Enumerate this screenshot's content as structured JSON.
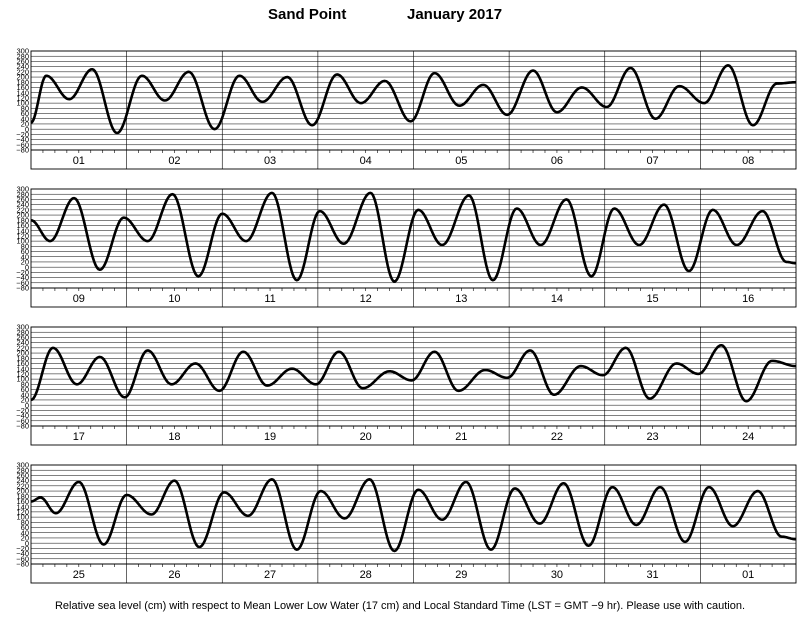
{
  "title": {
    "station": "Sand Point",
    "period": "January   2017"
  },
  "footer": "Relative sea level (cm) with respect to Mean Lower Low Water (17 cm) and Local Standard Time (LST = GMT −9 hr). Please use with caution.",
  "chart_data": {
    "type": "line",
    "ylabel": "",
    "ylim": [
      -80,
      300
    ],
    "yticks": [
      300,
      280,
      260,
      240,
      220,
      200,
      180,
      160,
      140,
      120,
      100,
      80,
      60,
      40,
      20,
      0,
      -20,
      -40,
      -60,
      -80
    ],
    "ytick_labels": [
      "300",
      "280",
      "260",
      "240",
      "220",
      "200",
      "180",
      "160",
      "140",
      "120",
      "100",
      "80",
      "60",
      "40",
      "20",
      "0",
      "−20",
      "−40",
      "−60",
      "−80"
    ],
    "grid": true,
    "panels": [
      {
        "days": [
          "01",
          "02",
          "03",
          "04",
          "05",
          "06",
          "07",
          "08"
        ],
        "extrema": [
          [
            0.0,
            25
          ],
          [
            0.16,
            205
          ],
          [
            0.4,
            115
          ],
          [
            0.64,
            230
          ],
          [
            0.9,
            -15
          ],
          [
            1.16,
            205
          ],
          [
            1.4,
            110
          ],
          [
            1.65,
            220
          ],
          [
            1.92,
            0
          ],
          [
            2.18,
            205
          ],
          [
            2.42,
            105
          ],
          [
            2.68,
            200
          ],
          [
            2.94,
            15
          ],
          [
            3.2,
            210
          ],
          [
            3.45,
            100
          ],
          [
            3.7,
            185
          ],
          [
            3.97,
            30
          ],
          [
            4.22,
            215
          ],
          [
            4.48,
            90
          ],
          [
            4.73,
            170
          ],
          [
            4.98,
            55
          ],
          [
            5.25,
            225
          ],
          [
            5.5,
            65
          ],
          [
            5.76,
            160
          ],
          [
            6.02,
            85
          ],
          [
            6.27,
            235
          ],
          [
            6.53,
            40
          ],
          [
            6.78,
            165
          ],
          [
            7.04,
            100
          ],
          [
            7.29,
            245
          ],
          [
            7.55,
            15
          ],
          [
            7.8,
            175
          ],
          [
            8.0,
            180
          ]
        ]
      },
      {
        "days": [
          "09",
          "10",
          "11",
          "12",
          "13",
          "14",
          "15",
          "16"
        ],
        "extrema": [
          [
            0.0,
            180
          ],
          [
            0.2,
            100
          ],
          [
            0.45,
            265
          ],
          [
            0.72,
            -10
          ],
          [
            0.97,
            190
          ],
          [
            1.22,
            100
          ],
          [
            1.48,
            280
          ],
          [
            1.75,
            -35
          ],
          [
            2.0,
            205
          ],
          [
            2.25,
            100
          ],
          [
            2.52,
            285
          ],
          [
            2.78,
            -50
          ],
          [
            3.02,
            215
          ],
          [
            3.27,
            90
          ],
          [
            3.55,
            285
          ],
          [
            3.8,
            -55
          ],
          [
            4.05,
            220
          ],
          [
            4.3,
            85
          ],
          [
            4.58,
            275
          ],
          [
            4.83,
            -50
          ],
          [
            5.08,
            225
          ],
          [
            5.33,
            85
          ],
          [
            5.6,
            260
          ],
          [
            5.86,
            -35
          ],
          [
            6.1,
            225
          ],
          [
            6.36,
            85
          ],
          [
            6.62,
            240
          ],
          [
            6.88,
            -15
          ],
          [
            7.13,
            220
          ],
          [
            7.38,
            85
          ],
          [
            7.65,
            215
          ],
          [
            7.9,
            20
          ],
          [
            8.0,
            15
          ]
        ]
      },
      {
        "days": [
          "17",
          "18",
          "19",
          "20",
          "21",
          "22",
          "23",
          "24"
        ],
        "extrema": [
          [
            0.0,
            20
          ],
          [
            0.23,
            220
          ],
          [
            0.48,
            80
          ],
          [
            0.72,
            185
          ],
          [
            0.98,
            30
          ],
          [
            1.22,
            210
          ],
          [
            1.47,
            80
          ],
          [
            1.72,
            160
          ],
          [
            1.97,
            55
          ],
          [
            2.22,
            205
          ],
          [
            2.47,
            75
          ],
          [
            2.73,
            140
          ],
          [
            2.98,
            80
          ],
          [
            3.22,
            205
          ],
          [
            3.47,
            65
          ],
          [
            3.75,
            130
          ],
          [
            3.98,
            95
          ],
          [
            4.22,
            205
          ],
          [
            4.47,
            55
          ],
          [
            4.75,
            135
          ],
          [
            4.98,
            105
          ],
          [
            5.22,
            210
          ],
          [
            5.47,
            40
          ],
          [
            5.75,
            150
          ],
          [
            5.98,
            115
          ],
          [
            6.22,
            220
          ],
          [
            6.47,
            25
          ],
          [
            6.75,
            160
          ],
          [
            6.98,
            120
          ],
          [
            7.22,
            230
          ],
          [
            7.48,
            15
          ],
          [
            7.75,
            170
          ],
          [
            8.0,
            150
          ]
        ]
      },
      {
        "days": [
          "25",
          "26",
          "27",
          "28",
          "29",
          "30",
          "31",
          "01"
        ],
        "extrema": [
          [
            0.0,
            160
          ],
          [
            0.1,
            175
          ],
          [
            0.26,
            115
          ],
          [
            0.5,
            235
          ],
          [
            0.76,
            -5
          ],
          [
            1.0,
            185
          ],
          [
            1.26,
            110
          ],
          [
            1.5,
            240
          ],
          [
            1.76,
            -15
          ],
          [
            2.02,
            195
          ],
          [
            2.27,
            105
          ],
          [
            2.52,
            245
          ],
          [
            2.78,
            -25
          ],
          [
            3.03,
            200
          ],
          [
            3.28,
            95
          ],
          [
            3.54,
            245
          ],
          [
            3.8,
            -30
          ],
          [
            4.05,
            205
          ],
          [
            4.3,
            90
          ],
          [
            4.55,
            235
          ],
          [
            4.81,
            -25
          ],
          [
            5.06,
            210
          ],
          [
            5.32,
            75
          ],
          [
            5.57,
            230
          ],
          [
            5.83,
            -10
          ],
          [
            6.08,
            215
          ],
          [
            6.33,
            70
          ],
          [
            6.58,
            215
          ],
          [
            6.84,
            5
          ],
          [
            7.09,
            215
          ],
          [
            7.34,
            65
          ],
          [
            7.6,
            200
          ],
          [
            7.85,
            25
          ],
          [
            8.0,
            15
          ]
        ]
      }
    ]
  }
}
